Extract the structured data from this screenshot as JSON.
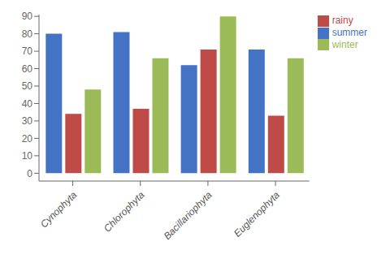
{
  "chart_data": {
    "type": "bar",
    "categories": [
      "Cynophyta",
      "Chlorophyta",
      "Bacillariophyta",
      "Euglenophyta"
    ],
    "series": [
      {
        "name": "summer",
        "color": "#4472C4",
        "values": [
          80,
          81,
          62,
          71
        ]
      },
      {
        "name": "rainy",
        "color": "#BE4B48",
        "values": [
          34,
          37,
          71,
          33
        ]
      },
      {
        "name": "winter",
        "color": "#9BBB59",
        "values": [
          48,
          66,
          90,
          66
        ]
      }
    ],
    "ylim": [
      -4.5,
      91
    ],
    "yticks": [
      0,
      10,
      20,
      30,
      40,
      50,
      60,
      70,
      80,
      90
    ],
    "grid": false,
    "legend": "upper right"
  }
}
